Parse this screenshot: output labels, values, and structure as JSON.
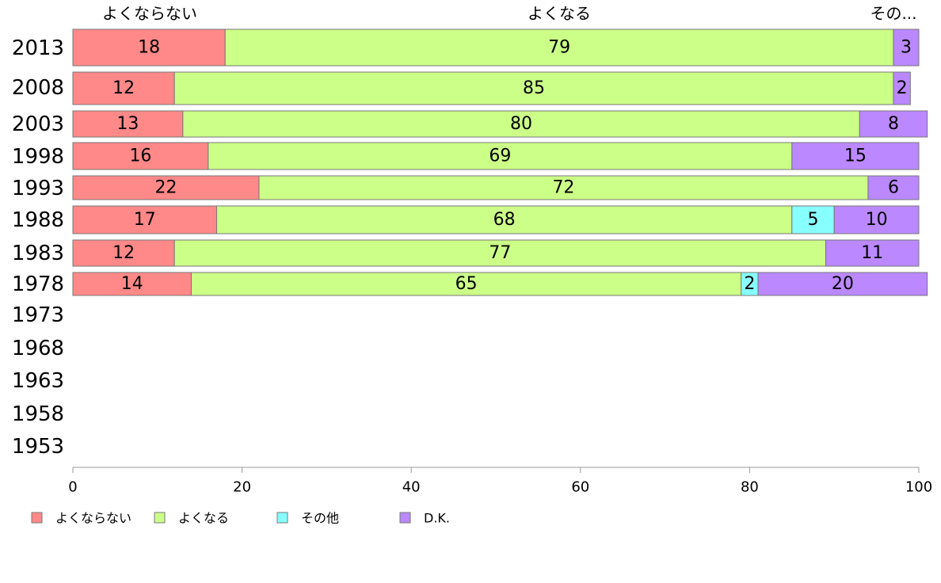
{
  "chart_data": {
    "type": "bar",
    "orientation": "horizontal",
    "stacked": true,
    "categories": [
      "2013",
      "2008",
      "2003",
      "1998",
      "1993",
      "1988",
      "1983",
      "1978",
      "1973",
      "1968",
      "1963",
      "1958",
      "1953"
    ],
    "series": [
      {
        "name": "よくならない",
        "color": "#ff8888",
        "values": [
          18,
          12,
          13,
          16,
          22,
          17,
          12,
          14,
          null,
          null,
          null,
          null,
          null
        ]
      },
      {
        "name": "よくなる",
        "color": "#ccff88",
        "values": [
          79,
          85,
          80,
          69,
          72,
          68,
          77,
          65,
          null,
          null,
          null,
          null,
          null
        ]
      },
      {
        "name": "その他",
        "color": "#88ffff",
        "values": [
          null,
          null,
          null,
          null,
          null,
          5,
          null,
          2,
          null,
          null,
          null,
          null,
          null
        ]
      },
      {
        "name": "D.K.",
        "color": "#bb88ff",
        "values": [
          3,
          2,
          8,
          15,
          6,
          10,
          11,
          20,
          null,
          null,
          null,
          null,
          null
        ]
      }
    ],
    "header_labels": [
      "よくならない",
      "よくなる",
      "その..."
    ],
    "x_ticks": [
      "0",
      "20",
      "40",
      "60",
      "80",
      "100"
    ],
    "xlim": [
      0,
      100
    ],
    "grid": false,
    "legend_position": "bottom-left"
  }
}
